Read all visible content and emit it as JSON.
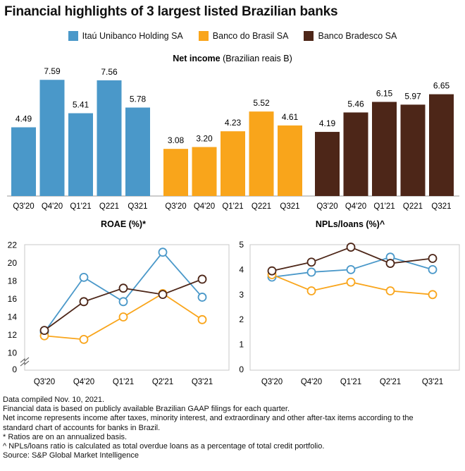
{
  "title": "Financial highlights of 3 largest listed Brazilian banks",
  "colors": {
    "itau": "#4a98c9",
    "bb": "#f9a51b",
    "bradesco": "#4d2618"
  },
  "legend": [
    {
      "name": "Itaú Unibanco Holding SA",
      "color": "#4a98c9"
    },
    {
      "name": "Banco do Brasil SA",
      "color": "#f9a51b"
    },
    {
      "name": "Banco Bradesco SA",
      "color": "#4d2618"
    }
  ],
  "bar_title_bold": "Net income",
  "bar_title_rest": " (Brazilian reais B)",
  "roae_title": "ROAE (%)*",
  "npl_title": "NPLs/loans (%)^",
  "chart_data": [
    {
      "type": "bar",
      "title": "Net income (Brazilian reais B)",
      "groups": [
        {
          "name": "Itaú Unibanco Holding SA",
          "categories": [
            "Q3'20",
            "Q4'20",
            "Q1'21",
            "Q221",
            "Q321"
          ],
          "values": [
            4.49,
            7.59,
            5.41,
            7.56,
            5.78
          ]
        },
        {
          "name": "Banco do Brasil SA",
          "categories": [
            "Q3'20",
            "Q4'20",
            "Q1'21",
            "Q221",
            "Q321"
          ],
          "values": [
            3.08,
            3.2,
            4.23,
            5.52,
            4.61
          ]
        },
        {
          "name": "Banco Bradesco SA",
          "categories": [
            "Q3'20",
            "Q4'20",
            "Q1'21",
            "Q221",
            "Q321"
          ],
          "values": [
            4.19,
            5.46,
            6.15,
            5.97,
            6.65
          ]
        }
      ],
      "value_labels": [
        [
          "4.49",
          "7.59",
          "5.41",
          "7.56",
          "5.78"
        ],
        [
          "3.08",
          "3.20",
          "4.23",
          "5.52",
          "4.61"
        ],
        [
          "4.19",
          "5.46",
          "6.15",
          "5.97",
          "6.65"
        ]
      ],
      "ylim": [
        0,
        8.2
      ]
    },
    {
      "type": "line",
      "title": "ROAE (%)*",
      "categories": [
        "Q3'20",
        "Q4'20",
        "Q1'21",
        "Q2'21",
        "Q3'21"
      ],
      "series": [
        {
          "name": "Itaú Unibanco Holding SA",
          "values": [
            12.3,
            18.4,
            15.7,
            21.2,
            16.2
          ]
        },
        {
          "name": "Banco do Brasil SA",
          "values": [
            11.9,
            11.5,
            14.0,
            16.6,
            13.7
          ]
        },
        {
          "name": "Banco Bradesco SA",
          "values": [
            12.5,
            15.7,
            17.2,
            16.5,
            18.2
          ]
        }
      ],
      "yticks": [
        "0",
        "10",
        "12",
        "14",
        "16",
        "18",
        "20",
        "22"
      ],
      "ylim": [
        10,
        22
      ],
      "axis_break": true,
      "grid": false
    },
    {
      "type": "line",
      "title": "NPLs/loans (%)^",
      "categories": [
        "Q3'20",
        "Q4'20",
        "Q1'21",
        "Q2'21",
        "Q3'21"
      ],
      "series": [
        {
          "name": "Itaú Unibanco Holding SA",
          "values": [
            3.7,
            3.9,
            4.0,
            4.5,
            4.0
          ]
        },
        {
          "name": "Banco do Brasil SA",
          "values": [
            3.8,
            3.15,
            3.5,
            3.15,
            3.0
          ]
        },
        {
          "name": "Banco Bradesco SA",
          "values": [
            3.95,
            4.3,
            4.9,
            4.25,
            4.45
          ]
        }
      ],
      "yticks": [
        "0",
        "1",
        "2",
        "3",
        "4",
        "5"
      ],
      "ylim": [
        0,
        5
      ],
      "grid": false
    }
  ],
  "notes": [
    "Data compiled Nov. 10, 2021.",
    "Financial data is based on publicly available Brazilian GAAP filings for each quarter.",
    "Net income represents income after taxes, minority interest, and extraordinary and other after-tax items according to the",
    "standard chart of accounts for banks in Brazil.",
    "* Ratios are on an annualized basis.",
    "^ NPLs/loans ratio is calculated as total overdue loans as a percentage of total credit portfolio.",
    "Source: S&P Global Market Intelligence"
  ]
}
